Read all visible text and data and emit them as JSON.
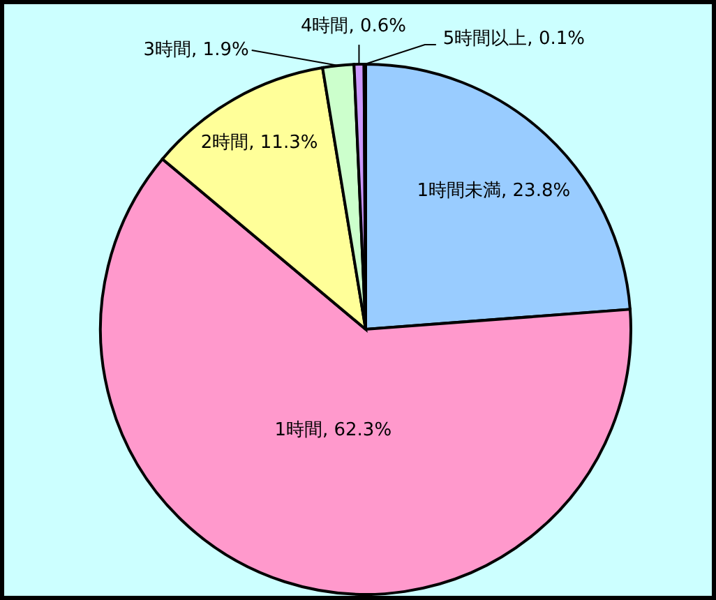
{
  "chart_data": {
    "type": "pie",
    "categories": [
      "1時間未満",
      "1時間",
      "2時間",
      "3時間",
      "4時間",
      "5時間以上"
    ],
    "values": [
      23.8,
      62.3,
      11.3,
      1.9,
      0.6,
      0.1
    ],
    "colors": [
      "#99ccff",
      "#ff99cc",
      "#ffff99",
      "#ccffcc",
      "#cc99ff",
      "#000000"
    ],
    "value_labels": [
      "23.8%",
      "62.3%",
      "11.3%",
      "1.9%",
      "0.6%",
      "0.1%"
    ]
  }
}
